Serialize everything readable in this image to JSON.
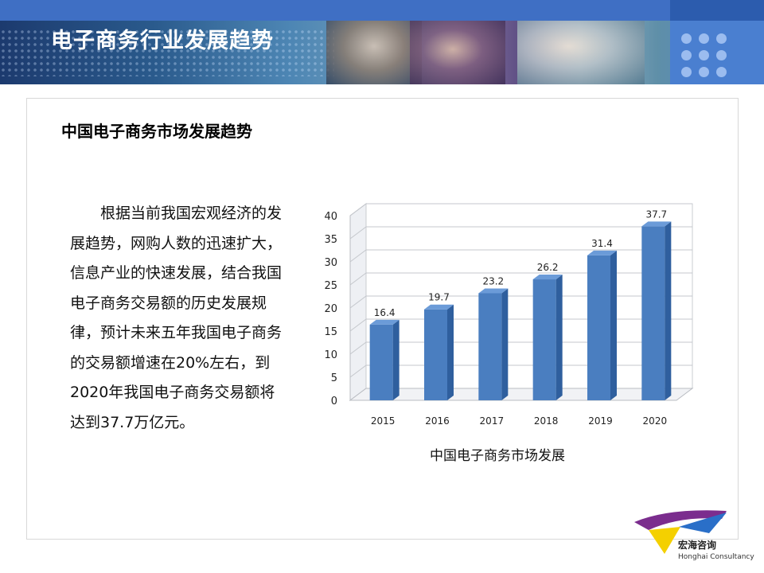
{
  "header": {
    "title": "电子商务行业发展趋势"
  },
  "section": {
    "subtitle": "中国电子商务市场发展趋势"
  },
  "paragraph": "根据当前我国宏观经济的发展趋势，网购人数的迅速扩大，信息产业的快速发展，结合我国电子商务交易额的历史发展规律，预计未来五年我国电子商务的交易额增速在20%左右，到2020年我国电子商务交易额将达到37.7万亿元。",
  "chart_caption": "中国电子商务市场发展",
  "chart_data": {
    "type": "bar",
    "categories": [
      "2015",
      "2016",
      "2017",
      "2018",
      "2019",
      "2020"
    ],
    "values": [
      16.4,
      19.7,
      23.2,
      26.2,
      31.4,
      37.7
    ],
    "ylim": [
      0,
      40
    ],
    "yticks": [
      0,
      5,
      10,
      15,
      20,
      25,
      30,
      35,
      40
    ],
    "grid": true,
    "three_d": true,
    "data_labels": true,
    "bar_color": "#4a7ec0"
  },
  "logo": {
    "name_cn": "宏海咨询",
    "name_en": "Honghai Consultancy"
  },
  "colors": {
    "banner_blue": "#3f6fc4",
    "bar": "#4a7ec0",
    "logo_purple": "#7b2d8e",
    "logo_yellow": "#f4d000",
    "logo_blue": "#2a6fc8"
  }
}
